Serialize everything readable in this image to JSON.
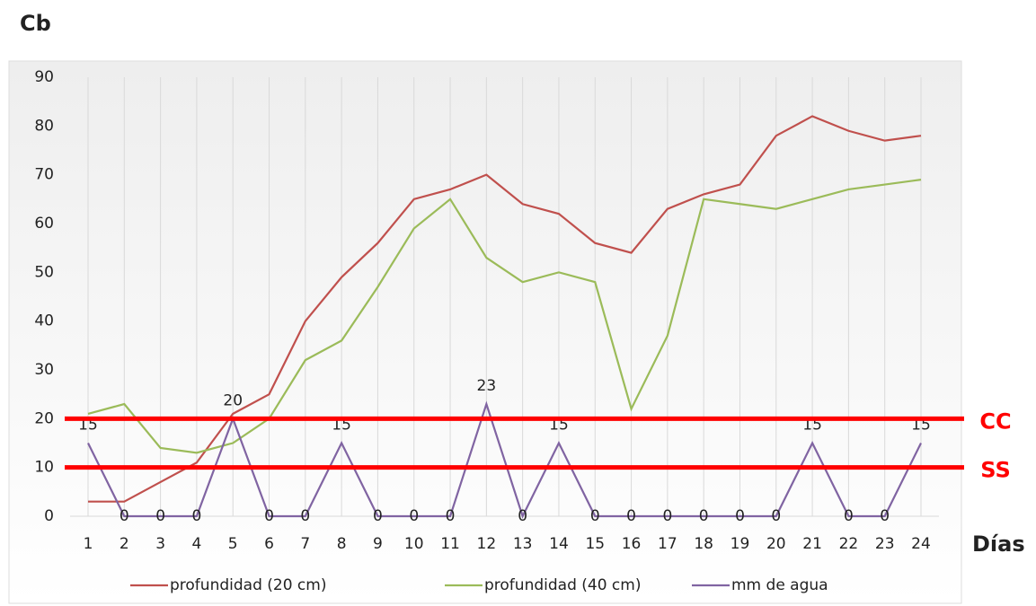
{
  "chart_data": {
    "type": "line",
    "y_axis_label": "Cb",
    "x_axis_label": "Días",
    "categories": [
      "1",
      "2",
      "3",
      "4",
      "5",
      "6",
      "7",
      "8",
      "9",
      "10",
      "11",
      "12",
      "13",
      "14",
      "15",
      "16",
      "17",
      "18",
      "19",
      "20",
      "21",
      "22",
      "23",
      "24"
    ],
    "series": [
      {
        "name": "profundidad (20 cm)",
        "color": "#c0504d",
        "values": [
          3,
          3,
          7,
          11,
          21,
          25,
          40,
          49,
          56,
          65,
          67,
          70,
          64,
          62,
          56,
          54,
          63,
          66,
          68,
          78,
          82,
          79,
          77,
          78
        ]
      },
      {
        "name": "profundidad (40 cm)",
        "color": "#9bbb59",
        "values": [
          21,
          23,
          14,
          13,
          15,
          20,
          32,
          36,
          47,
          59,
          65,
          53,
          48,
          50,
          48,
          22,
          37,
          65,
          64,
          63,
          65,
          67,
          68,
          69
        ]
      },
      {
        "name": "mm de agua",
        "color": "#8064a2",
        "values": [
          15,
          0,
          0,
          0,
          20,
          0,
          0,
          15,
          0,
          0,
          0,
          23,
          0,
          15,
          0,
          0,
          0,
          0,
          0,
          0,
          15,
          0,
          0,
          15
        ],
        "data_labels": true
      }
    ],
    "reference_lines": [
      {
        "label": "CC",
        "value": 20,
        "color": "#ff0000"
      },
      {
        "label": "SS",
        "value": 10,
        "color": "#ff0000"
      }
    ],
    "ylim": [
      0,
      90
    ],
    "yticks": [
      0,
      10,
      20,
      30,
      40,
      50,
      60,
      70,
      80,
      90
    ],
    "grid": "vertical",
    "legend": "bottom"
  }
}
